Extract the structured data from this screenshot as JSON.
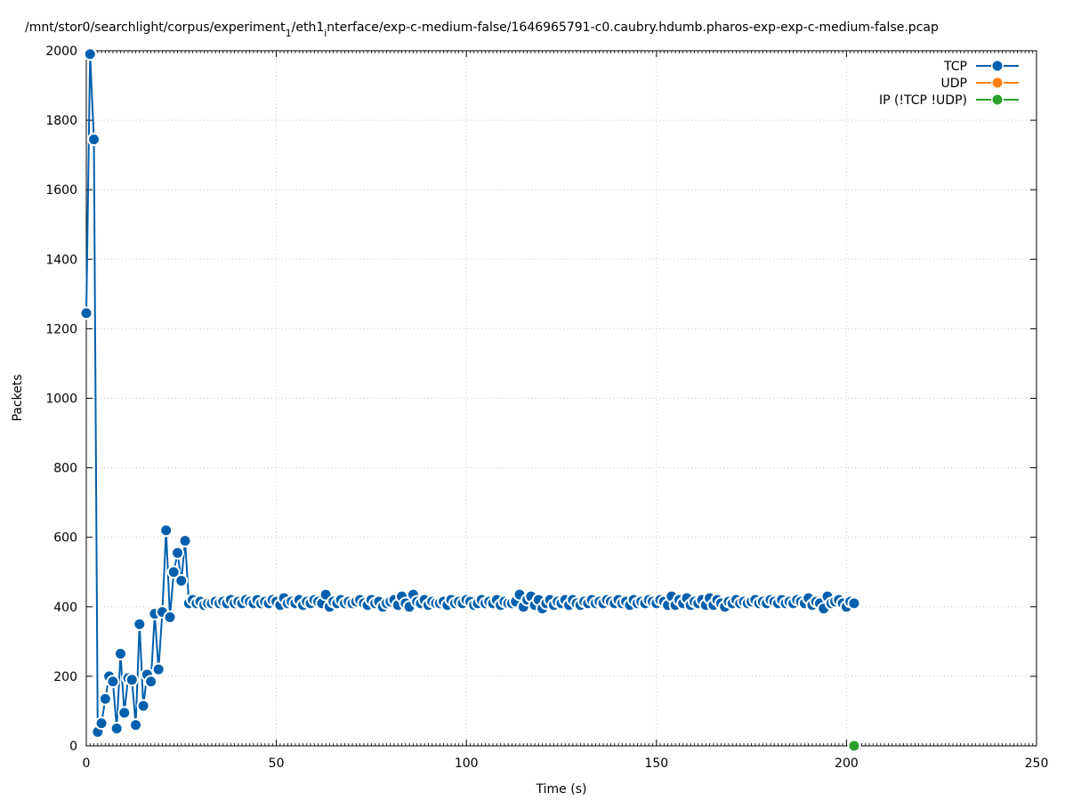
{
  "chart_data": {
    "type": "line",
    "title_main": "/mnt/stor0/searchlight/corpus/experiment",
    "title_sub1": "1",
    "title_mid": "/eth1",
    "title_sub2": "i",
    "title_end": "nterface/exp-c-medium-false/1646965791-c0.caubry.hdumb.pharos-exp-exp-c-medium-false.pcap",
    "xlabel": "Time (s)",
    "ylabel": "Packets",
    "xlim": [
      0,
      250
    ],
    "ylim": [
      0,
      2000
    ],
    "xticks": [
      "0",
      "50",
      "100",
      "150",
      "200",
      "250"
    ],
    "yticks": [
      "0",
      "200",
      "400",
      "600",
      "800",
      "1000",
      "1200",
      "1400",
      "1600",
      "1800",
      "2000"
    ],
    "grid": true,
    "legend_position": "top-right",
    "series": [
      {
        "name": "TCP",
        "color": "#0060ad",
        "x": [
          0,
          1,
          2,
          3,
          4,
          5,
          6,
          7,
          8,
          9,
          10,
          11,
          12,
          13,
          14,
          15,
          16,
          17,
          18,
          19,
          20,
          21,
          22,
          23,
          24,
          25,
          26,
          27,
          28,
          29,
          30,
          31,
          32,
          33,
          34,
          35,
          36,
          37,
          38,
          39,
          40,
          41,
          42,
          43,
          44,
          45,
          46,
          47,
          48,
          49,
          50,
          51,
          52,
          53,
          54,
          55,
          56,
          57,
          58,
          59,
          60,
          61,
          62,
          63,
          64,
          65,
          66,
          67,
          68,
          69,
          70,
          71,
          72,
          73,
          74,
          75,
          76,
          77,
          78,
          79,
          80,
          81,
          82,
          83,
          84,
          85,
          86,
          87,
          88,
          89,
          90,
          91,
          92,
          93,
          94,
          95,
          96,
          97,
          98,
          99,
          100,
          101,
          102,
          103,
          104,
          105,
          106,
          107,
          108,
          109,
          110,
          111,
          112,
          113,
          114,
          115,
          116,
          117,
          118,
          119,
          120,
          121,
          122,
          123,
          124,
          125,
          126,
          127,
          128,
          129,
          130,
          131,
          132,
          133,
          134,
          135,
          136,
          137,
          138,
          139,
          140,
          141,
          142,
          143,
          144,
          145,
          146,
          147,
          148,
          149,
          150,
          151,
          152,
          153,
          154,
          155,
          156,
          157,
          158,
          159,
          160,
          161,
          162,
          163,
          164,
          165,
          166,
          167,
          168,
          169,
          170,
          171,
          172,
          173,
          174,
          175,
          176,
          177,
          178,
          179,
          180,
          181,
          182,
          183,
          184,
          185,
          186,
          187,
          188,
          189,
          190,
          191,
          192,
          193,
          194,
          195,
          196,
          197,
          198,
          199,
          200,
          201,
          202
        ],
        "y": [
          1245,
          1990,
          1745,
          40,
          65,
          135,
          200,
          185,
          50,
          265,
          95,
          195,
          190,
          60,
          350,
          115,
          205,
          185,
          380,
          220,
          385,
          620,
          370,
          500,
          555,
          475,
          590,
          410,
          420,
          410,
          415,
          405,
          410,
          410,
          415,
          410,
          415,
          410,
          420,
          410,
          415,
          410,
          420,
          415,
          410,
          420,
          410,
          415,
          410,
          420,
          415,
          405,
          425,
          410,
          415,
          410,
          420,
          405,
          415,
          410,
          420,
          415,
          410,
          435,
          400,
          415,
          410,
          420,
          410,
          415,
          410,
          415,
          420,
          410,
          405,
          420,
          410,
          415,
          400,
          410,
          415,
          420,
          405,
          430,
          410,
          400,
          435,
          415,
          410,
          420,
          405,
          415,
          410,
          410,
          415,
          405,
          420,
          410,
          415,
          410,
          420,
          415,
          405,
          410,
          420,
          410,
          415,
          410,
          420,
          405,
          415,
          410,
          410,
          415,
          435,
          400,
          420,
          430,
          405,
          420,
          395,
          410,
          420,
          405,
          415,
          410,
          420,
          405,
          420,
          410,
          405,
          415,
          410,
          420,
          410,
          415,
          410,
          420,
          415,
          410,
          420,
          410,
          415,
          405,
          420,
          410,
          415,
          410,
          420,
          415,
          410,
          420,
          415,
          405,
          430,
          405,
          420,
          410,
          425,
          405,
          415,
          410,
          420,
          405,
          425,
          405,
          420,
          410,
          400,
          415,
          410,
          420,
          410,
          415,
          410,
          415,
          420,
          410,
          415,
          410,
          420,
          415,
          410,
          420,
          410,
          415,
          410,
          420,
          415,
          410,
          425,
          405,
          415,
          410,
          395,
          430,
          410,
          415,
          420,
          410,
          400,
          415,
          410
        ]
      },
      {
        "name": "UDP",
        "color": "#ff7f0e",
        "x": [],
        "y": []
      },
      {
        "name": "IP (!TCP  !UDP)",
        "color": "#2ca02c",
        "x": [
          202
        ],
        "y": [
          0
        ]
      }
    ]
  }
}
